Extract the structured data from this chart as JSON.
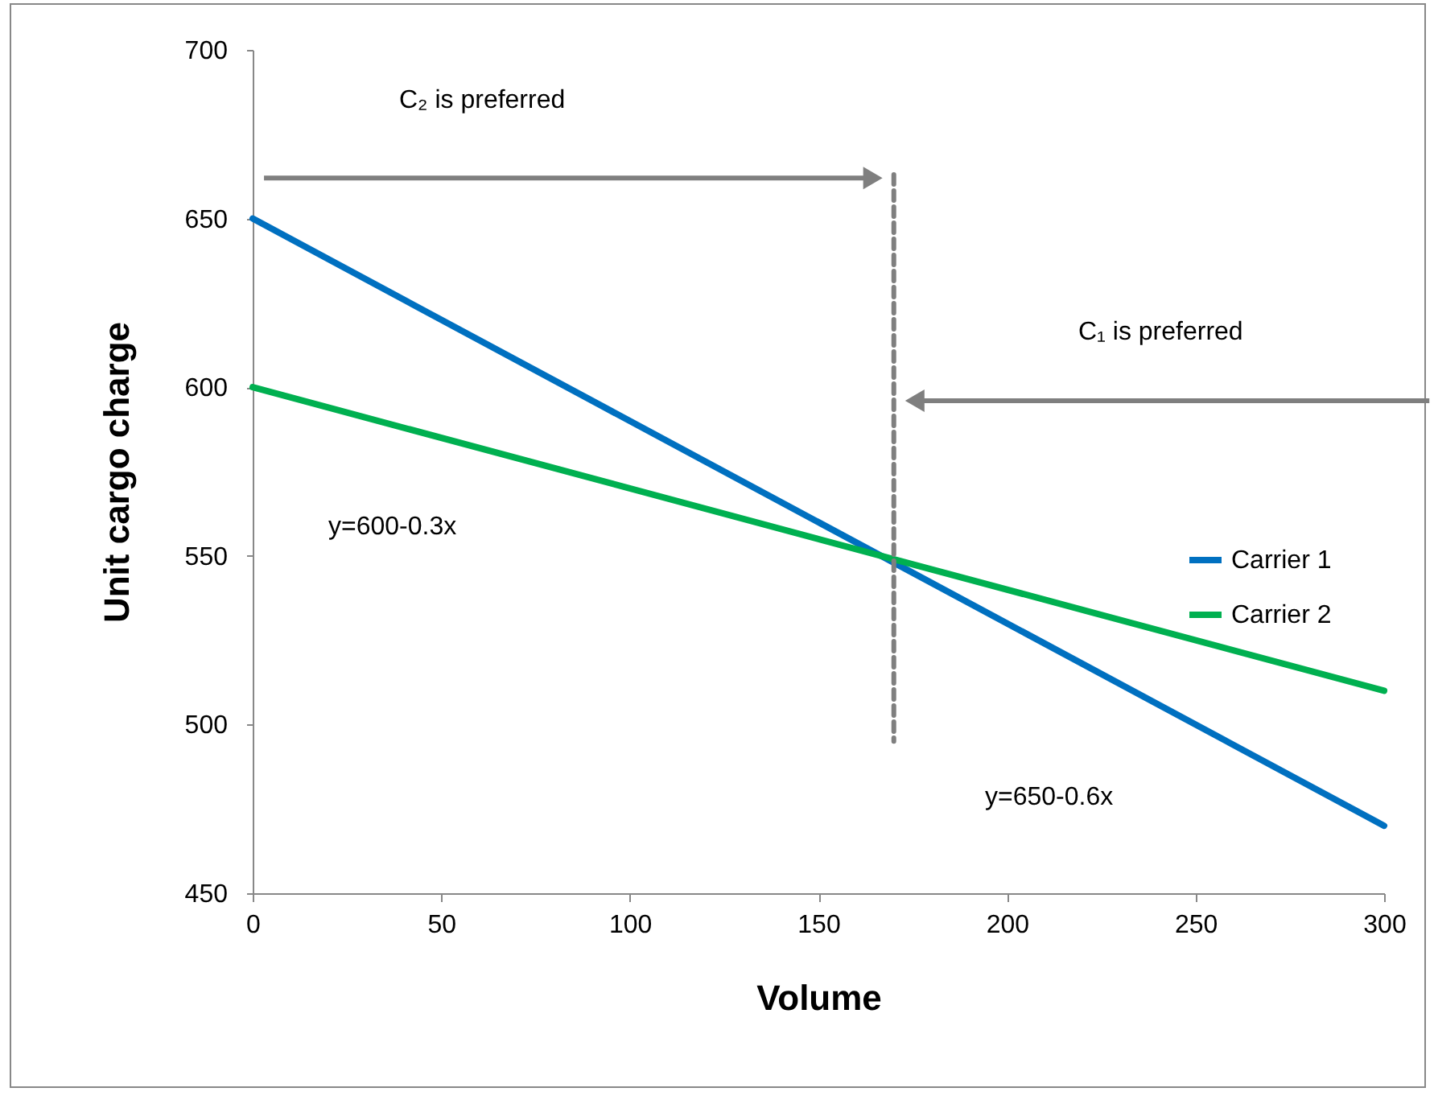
{
  "chart_data": {
    "type": "line",
    "xlabel": "Volume",
    "ylabel": "Unit cargo charge",
    "x": [
      0,
      300
    ],
    "series": [
      {
        "name": "Carrier 1",
        "color": "#0070c0",
        "values": [
          650,
          470
        ]
      },
      {
        "name": "Carrier 2",
        "color": "#00b050",
        "values": [
          600,
          510
        ]
      },
      {
        "type": "line",
        "color": "#7f7f7f",
        "line_style": "dashed",
        "x": [
          170,
          170
        ],
        "values": [
          663,
          495
        ]
      }
    ],
    "xlim": [
      0,
      300
    ],
    "xticks": [
      0,
      50,
      100,
      150,
      200,
      250,
      300
    ],
    "ylim": [
      450,
      700
    ],
    "yticks": [
      450,
      500,
      550,
      600,
      650,
      700
    ],
    "grid": false,
    "legend": "right",
    "marker": "none",
    "annotations": [
      "C₂ is preferred",
      "C₁ is preferred",
      "y=600-0.3x",
      "y=650-0.6x"
    ]
  }
}
